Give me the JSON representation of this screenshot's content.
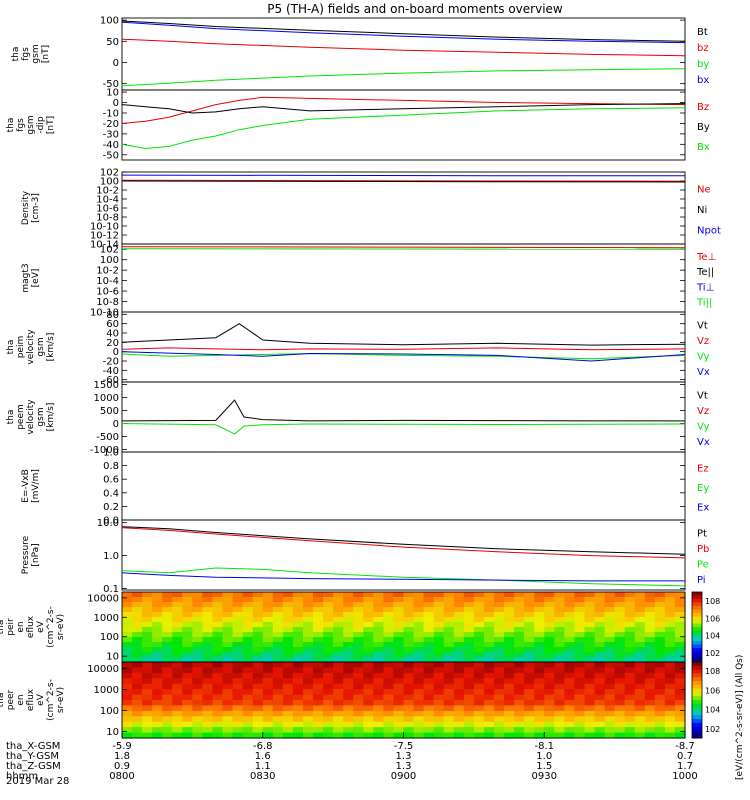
{
  "title": "P5 (TH-A) fields and on-board moments overview",
  "date": "2019 Mar 28",
  "colorbar_label": "[eV/(cm^2-s-sr-eV)] (All Qs)",
  "colors": {
    "black": "#000000",
    "red": "#e60000",
    "green": "#00e600",
    "blue": "#0000e6"
  },
  "chart_data": [
    {
      "type": "line",
      "ylabel": [
        "tha",
        "fgs",
        "gsm",
        "[nT]"
      ],
      "yticks": [
        "100",
        "50",
        "0",
        "-50"
      ],
      "ylim": [
        -65,
        105
      ],
      "legend": [
        {
          "label": "Bt",
          "color": "#000000"
        },
        {
          "label": "bz",
          "color": "#e60000"
        },
        {
          "label": "by",
          "color": "#00e600"
        },
        {
          "label": "bx",
          "color": "#0000e6"
        }
      ],
      "series": [
        {
          "name": "Bt",
          "color": "#000000",
          "x": [
            0,
            10,
            20,
            40,
            60,
            80,
            100,
            120
          ],
          "y": [
            98,
            92,
            85,
            76,
            68,
            60,
            54,
            50
          ]
        },
        {
          "name": "bx",
          "color": "#0000e6",
          "x": [
            0,
            10,
            20,
            40,
            60,
            80,
            100,
            120
          ],
          "y": [
            95,
            88,
            80,
            70,
            62,
            55,
            50,
            47
          ]
        },
        {
          "name": "bz",
          "color": "#e60000",
          "x": [
            0,
            10,
            20,
            40,
            60,
            80,
            100,
            120
          ],
          "y": [
            55,
            50,
            44,
            36,
            29,
            24,
            19,
            16
          ]
        },
        {
          "name": "by",
          "color": "#00e600",
          "x": [
            0,
            10,
            20,
            40,
            60,
            80,
            100,
            120
          ],
          "y": [
            -55,
            -49,
            -42,
            -32,
            -25,
            -20,
            -17,
            -15
          ]
        }
      ]
    },
    {
      "type": "line",
      "ylabel": [
        "tha",
        "fgs",
        "gsm",
        "-dip",
        "[nT]"
      ],
      "yticks": [
        "10",
        "0",
        "-10",
        "-20",
        "-30",
        "-40",
        "-50"
      ],
      "ylim": [
        -55,
        12
      ],
      "legend": [
        {
          "label": "Bz",
          "color": "#e60000"
        },
        {
          "label": "By",
          "color": "#000000"
        },
        {
          "label": "Bx",
          "color": "#00e600"
        }
      ],
      "series": [
        {
          "name": "Bz",
          "color": "#e60000",
          "x": [
            0,
            5,
            10,
            15,
            20,
            25,
            30,
            40,
            60,
            80,
            100,
            120
          ],
          "y": [
            -20,
            -18,
            -14,
            -8,
            -2,
            2,
            5,
            4,
            2,
            0,
            -1,
            -2
          ]
        },
        {
          "name": "By",
          "color": "#000000",
          "x": [
            0,
            5,
            10,
            15,
            20,
            25,
            30,
            40,
            60,
            80,
            100,
            120
          ],
          "y": [
            -2,
            -4,
            -6,
            -10,
            -9,
            -6,
            -4,
            -8,
            -6,
            -4,
            -2,
            -1
          ]
        },
        {
          "name": "Bx",
          "color": "#00e600",
          "x": [
            0,
            5,
            10,
            15,
            20,
            25,
            30,
            40,
            60,
            80,
            100,
            120
          ],
          "y": [
            -40,
            -44,
            -42,
            -36,
            -32,
            -26,
            -22,
            -16,
            -12,
            -8,
            -6,
            -5
          ]
        }
      ]
    },
    {
      "type": "line",
      "ylabel": [
        "Density",
        "[cm-3]"
      ],
      "yticks": [
        "10^2",
        "10^0",
        "10^-2",
        "10^-4",
        "10^-6",
        "10^-8",
        "10^-10",
        "10^-12",
        "10^-14"
      ],
      "scale": "log",
      "ylim": [
        1e-14,
        100.0
      ],
      "legend": [
        {
          "label": "Ne",
          "color": "#e60000"
        },
        {
          "label": "Ni",
          "color": "#000000"
        },
        {
          "label": "Npot",
          "color": "#0000e6"
        }
      ],
      "series": [
        {
          "name": "Ne",
          "color": "#e60000",
          "x": [
            0,
            40,
            80,
            120
          ],
          "y": [
            1.5,
            1.2,
            1.0,
            0.9
          ]
        },
        {
          "name": "Ni",
          "color": "#000000",
          "x": [
            0,
            40,
            80,
            120
          ],
          "y": [
            1.0,
            0.8,
            0.7,
            0.6
          ]
        },
        {
          "name": "Npot",
          "color": "#0000e6",
          "x": [
            0,
            40,
            80,
            120
          ],
          "y": [
            20,
            18,
            15,
            14
          ]
        }
      ]
    },
    {
      "type": "line",
      "ylabel": [
        "magt3",
        "[eV]"
      ],
      "yticks": [
        "10^2",
        "10^0",
        "10^-2",
        "10^-4",
        "10^-6",
        "10^-8",
        "10^-10"
      ],
      "scale": "log",
      "ylim": [
        1e-10,
        1000.0
      ],
      "legend": [
        {
          "label": "Te⊥",
          "color": "#e60000"
        },
        {
          "label": "Te||",
          "color": "#000000"
        },
        {
          "label": "Ti⊥",
          "color": "#0000e6"
        },
        {
          "label": "Ti||",
          "color": "#00e600"
        }
      ],
      "series": [
        {
          "name": "Te⊥",
          "color": "#e60000",
          "x": [
            0,
            60,
            120
          ],
          "y": [
            300,
            250,
            200
          ]
        },
        {
          "name": "Ti||",
          "color": "#00e600",
          "x": [
            0,
            60,
            120
          ],
          "y": [
            120,
            110,
            100
          ]
        }
      ]
    },
    {
      "type": "line",
      "ylabel": [
        "tha",
        "peim",
        "velocity",
        "gsm",
        "[km/s]"
      ],
      "yticks": [
        "80",
        "60",
        "40",
        "20",
        "0",
        "-20",
        "-40",
        "-60"
      ],
      "ylim": [
        -65,
        85
      ],
      "legend": [
        {
          "label": "Vt",
          "color": "#000000"
        },
        {
          "label": "Vz",
          "color": "#e60000"
        },
        {
          "label": "Vy",
          "color": "#00e600"
        },
        {
          "label": "Vx",
          "color": "#0000e6"
        }
      ],
      "series": [
        {
          "name": "Vt",
          "color": "#000000",
          "x": [
            0,
            10,
            20,
            25,
            30,
            40,
            60,
            80,
            100,
            120
          ],
          "y": [
            20,
            25,
            30,
            60,
            25,
            18,
            15,
            18,
            14,
            16
          ]
        },
        {
          "name": "Vz",
          "color": "#e60000",
          "x": [
            0,
            10,
            20,
            30,
            40,
            60,
            80,
            100,
            120
          ],
          "y": [
            5,
            8,
            6,
            4,
            6,
            5,
            8,
            4,
            6
          ]
        },
        {
          "name": "Vy",
          "color": "#00e600",
          "x": [
            0,
            10,
            20,
            30,
            40,
            60,
            80,
            100,
            120
          ],
          "y": [
            -5,
            -10,
            -8,
            -6,
            -4,
            -8,
            -10,
            -15,
            -8
          ]
        },
        {
          "name": "Vx",
          "color": "#0000e6",
          "x": [
            0,
            10,
            20,
            30,
            40,
            60,
            80,
            100,
            120
          ],
          "y": [
            0,
            -3,
            -6,
            -10,
            -4,
            -5,
            -8,
            -20,
            -6
          ]
        }
      ]
    },
    {
      "type": "line",
      "ylabel": [
        "tha",
        "peem",
        "velocity",
        "gsm",
        "[km/s]"
      ],
      "yticks": [
        "1500",
        "1000",
        "500",
        "0",
        "-500",
        "-1000"
      ],
      "ylim": [
        -1100,
        1600
      ],
      "legend": [
        {
          "label": "Vt",
          "color": "#000000"
        },
        {
          "label": "Vz",
          "color": "#e60000"
        },
        {
          "label": "Vy",
          "color": "#00e600"
        },
        {
          "label": "Vx",
          "color": "#0000e6"
        }
      ],
      "series": [
        {
          "name": "Vt",
          "color": "#000000",
          "x": [
            0,
            20,
            24,
            26,
            30,
            40,
            60,
            80,
            100,
            120
          ],
          "y": [
            100,
            120,
            900,
            250,
            150,
            100,
            120,
            110,
            100,
            100
          ]
        },
        {
          "name": "Vy",
          "color": "#00e600",
          "x": [
            0,
            20,
            24,
            26,
            30,
            40,
            60,
            80,
            100,
            120
          ],
          "y": [
            0,
            -50,
            -400,
            -100,
            -50,
            -20,
            -30,
            -40,
            -30,
            -20
          ]
        }
      ]
    },
    {
      "type": "line",
      "ylabel": [
        "E=-VxB",
        "[mV/m]"
      ],
      "yticks": [
        "1.0",
        "0.8",
        "0.6",
        "0.4",
        "0.2",
        "0.0"
      ],
      "ylim": [
        0,
        1
      ],
      "legend": [
        {
          "label": "Ez",
          "color": "#e60000"
        },
        {
          "label": "Ey",
          "color": "#00e600"
        },
        {
          "label": "Ex",
          "color": "#0000e6"
        }
      ],
      "series": []
    },
    {
      "type": "line",
      "ylabel": [
        "Pressure",
        "[nPa]"
      ],
      "yticks": [
        "10.0",
        "1.0",
        "0.1"
      ],
      "scale": "log",
      "ylim": [
        0.09,
        12
      ],
      "legend": [
        {
          "label": "Pt",
          "color": "#000000"
        },
        {
          "label": "Pb",
          "color": "#e60000"
        },
        {
          "label": "Pe",
          "color": "#00e600"
        },
        {
          "label": "Pi",
          "color": "#0000e6"
        }
      ],
      "series": [
        {
          "name": "Pt",
          "color": "#000000",
          "x": [
            0,
            10,
            20,
            40,
            60,
            80,
            100,
            120
          ],
          "y": [
            7.5,
            6.5,
            5,
            3.2,
            2.2,
            1.6,
            1.3,
            1.1
          ]
        },
        {
          "name": "Pb",
          "color": "#e60000",
          "x": [
            0,
            10,
            20,
            40,
            60,
            80,
            100,
            120
          ],
          "y": [
            7,
            5.8,
            4.5,
            2.8,
            1.8,
            1.3,
            1.0,
            0.85
          ]
        },
        {
          "name": "Pe",
          "color": "#00e600",
          "x": [
            0,
            10,
            20,
            30,
            40,
            60,
            80,
            100,
            120
          ],
          "y": [
            0.35,
            0.3,
            0.42,
            0.38,
            0.3,
            0.22,
            0.18,
            0.14,
            0.12
          ]
        },
        {
          "name": "Pi",
          "color": "#0000e6",
          "x": [
            0,
            10,
            20,
            40,
            60,
            80,
            100,
            120
          ],
          "y": [
            0.3,
            0.25,
            0.22,
            0.2,
            0.19,
            0.18,
            0.17,
            0.17
          ]
        }
      ]
    },
    {
      "type": "heatmap",
      "ylabel": [
        "tha",
        "peir",
        "en",
        "eflux",
        "eV",
        "(cm^2-s-",
        "sr-eV)"
      ],
      "yticks": [
        "10000",
        "1000",
        "100",
        "10"
      ],
      "scale": "log",
      "ylim": [
        5,
        20000
      ],
      "colorbar_ticks": [
        "10^8",
        "10^6",
        "10^4",
        "10^2"
      ]
    },
    {
      "type": "heatmap",
      "ylabel": [
        "tha",
        "peer",
        "en",
        "eflux",
        "eV",
        "(cm^2-s-",
        "sr-eV)"
      ],
      "yticks": [
        "10000",
        "1000",
        "100",
        "10"
      ],
      "scale": "log",
      "ylim": [
        5,
        20000
      ],
      "colorbar_ticks": [
        "10^8",
        "10^6",
        "10^4",
        "10^2"
      ]
    }
  ],
  "x_axis": {
    "rows": [
      {
        "label": "tha_X-GSM",
        "values": [
          "-5.9",
          "-6.8",
          "-7.5",
          "-8.1",
          "-8.7"
        ]
      },
      {
        "label": "tha_Y-GSM",
        "values": [
          "1.8",
          "1.6",
          "1.3",
          "1.0",
          "0.7"
        ]
      },
      {
        "label": "tha_Z-GSM",
        "values": [
          "0.9",
          "1.1",
          "1.3",
          "1.5",
          "1.7"
        ]
      },
      {
        "label": "hhmm",
        "values": [
          "0800",
          "0830",
          "0900",
          "0930",
          "1000"
        ]
      }
    ]
  }
}
